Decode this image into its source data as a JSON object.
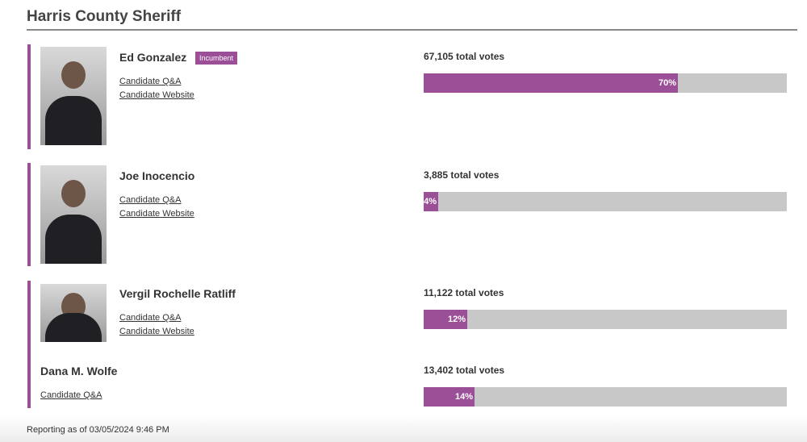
{
  "header": {
    "title": "Harris County Sheriff"
  },
  "candidates": [
    {
      "name": "Ed Gonzalez",
      "badge": "Incumbent",
      "links": [
        "Candidate Q&A",
        "Candidate Website"
      ],
      "votes": "67,105 total votes",
      "percent": 70,
      "percent_label": "70%"
    },
    {
      "name": "Joe Inocencio",
      "links": [
        "Candidate Q&A",
        "Candidate Website"
      ],
      "votes": "3,885 total votes",
      "percent": 4,
      "percent_label": "4%"
    },
    {
      "name": "Vergil Rochelle Ratliff",
      "links": [
        "Candidate Q&A",
        "Candidate Website"
      ],
      "votes": "11,122 total votes",
      "percent": 12,
      "percent_label": "12%"
    },
    {
      "name": "Dana M. Wolfe",
      "links": [
        "Candidate Q&A"
      ],
      "votes": "13,402 total votes",
      "percent": 14,
      "percent_label": "14%"
    }
  ],
  "footer": {
    "reporting": "Reporting as of 03/05/2024 9:46 PM"
  }
}
